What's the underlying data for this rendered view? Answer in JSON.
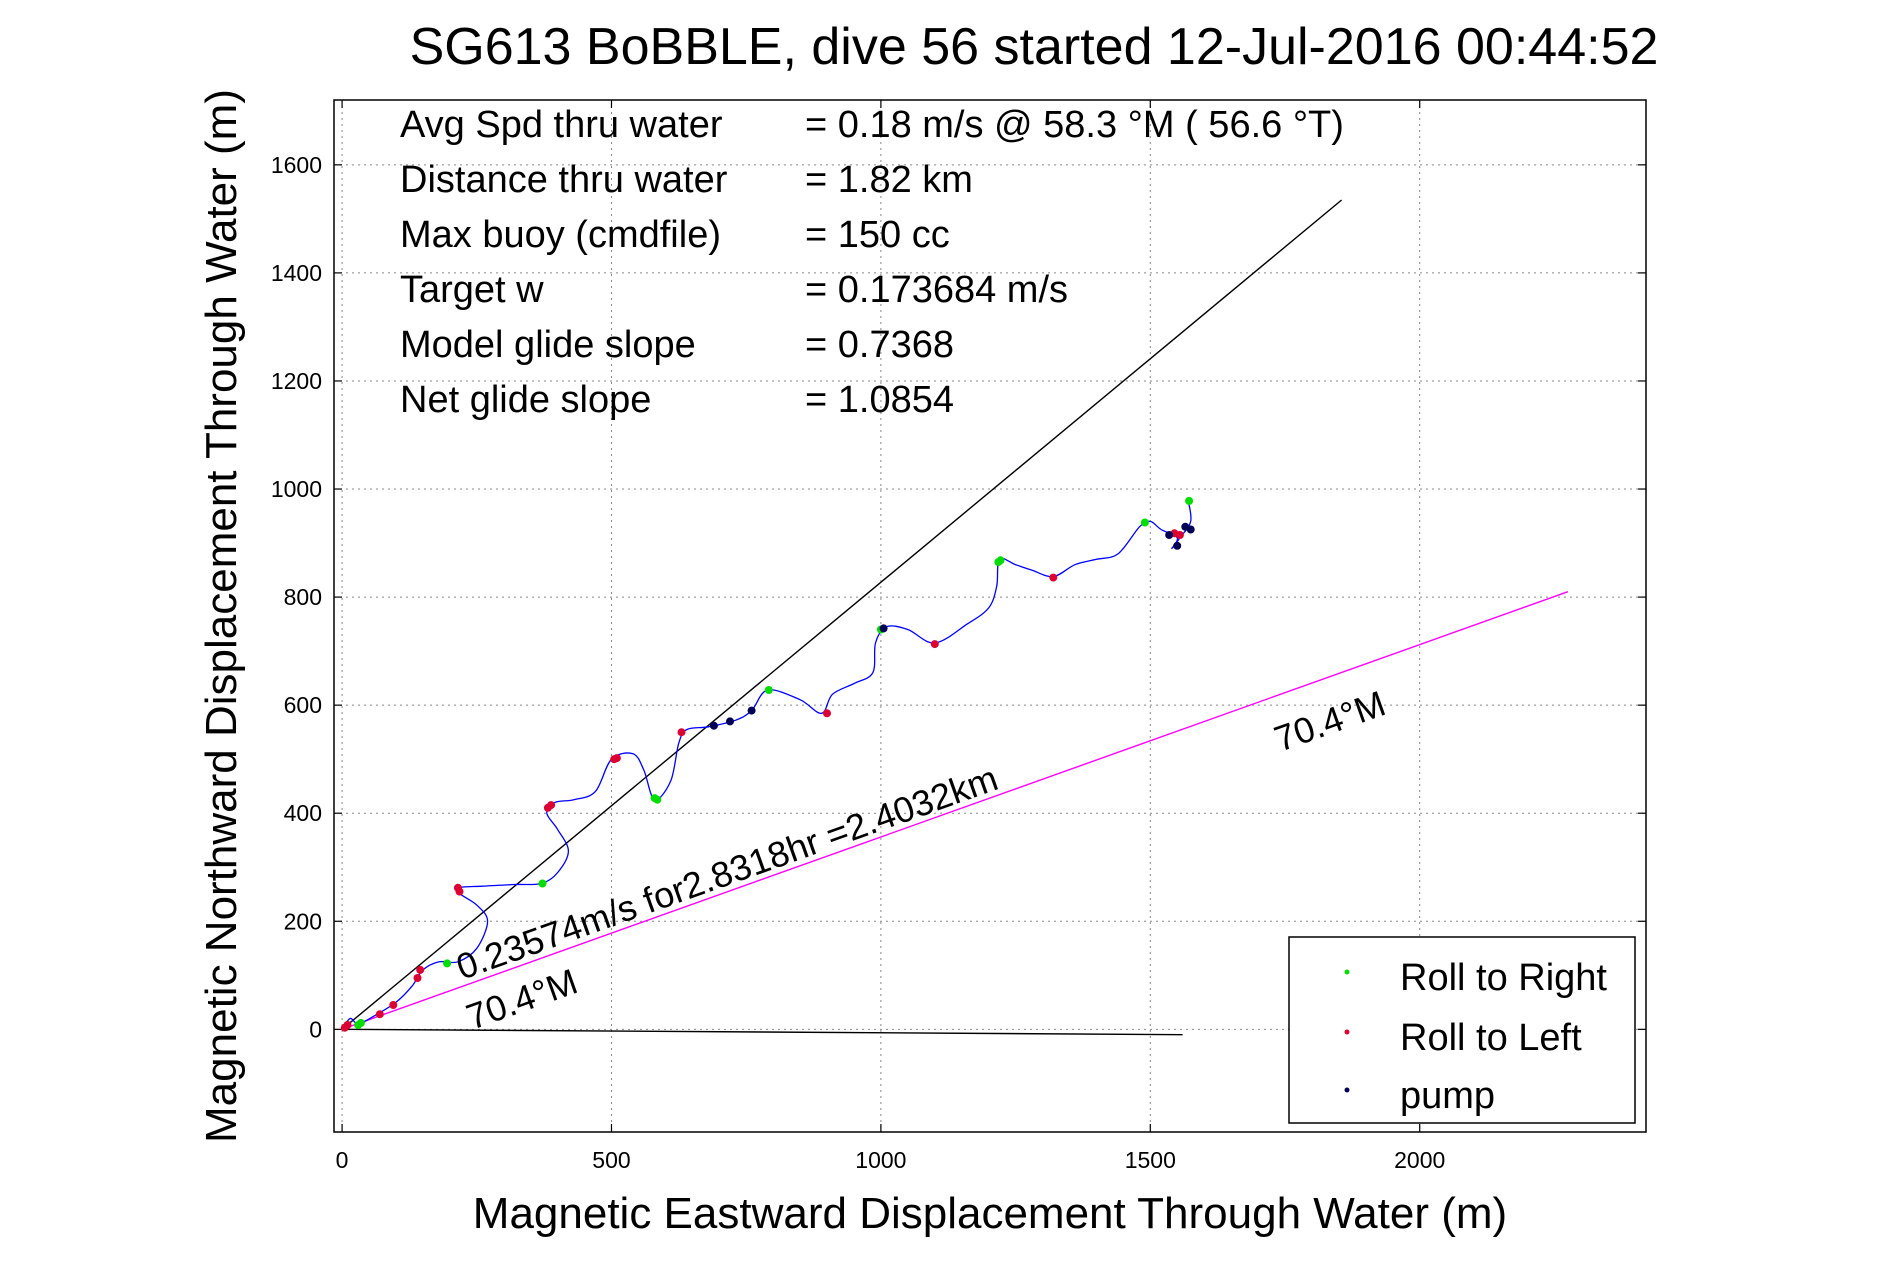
{
  "chart_data": {
    "type": "scatter",
    "title": "SG613 BoBBLE, dive 56 started 12-Jul-2016 00:44:52",
    "xlabel": "Magnetic Eastward Displacement Through Water (m)",
    "ylabel": "Magnetic Northward Displacement Through Water (m)",
    "xlim": [
      -15,
      2420
    ],
    "ylim": [
      -190,
      1720
    ],
    "xticks": [
      0,
      500,
      1000,
      1500,
      2000
    ],
    "yticks": [
      0,
      200,
      400,
      600,
      800,
      1000,
      1200,
      1400,
      1600
    ],
    "grid": true,
    "legend_position": "bottom-right",
    "info_lines": [
      {
        "label": "Avg Spd thru water",
        "value": "=  0.18 m/s @  58.3 °M ( 56.6 °T)"
      },
      {
        "label": "Distance thru water",
        "value": "=  1.82 km"
      },
      {
        "label": "Max buoy (cmdfile)",
        "value": "= 150 cc"
      },
      {
        "label": "Target w",
        "value": "= 0.173684 m/s"
      },
      {
        "label": "Model glide slope",
        "value": "= 0.7368"
      },
      {
        "label": "Net glide slope",
        "value": "= 1.0854"
      }
    ],
    "annotations": {
      "current_label": "0.23574m/s for2.8318hr =2.4032km",
      "heading_label_near": "70.4°M",
      "heading_label_far": "70.4°M"
    },
    "reference_lines": [
      {
        "color": "#000000",
        "points": [
          [
            0,
            0
          ],
          [
            1855,
            1535
          ]
        ]
      },
      {
        "color": "#ff00ff",
        "points": [
          [
            0,
            0
          ],
          [
            2275,
            810
          ]
        ]
      },
      {
        "color": "#000000",
        "points": [
          [
            0,
            0
          ],
          [
            1560,
            -10
          ]
        ]
      }
    ],
    "track": {
      "color": "#0000ff",
      "points": [
        [
          0,
          0
        ],
        [
          15,
          20
        ],
        [
          30,
          10
        ],
        [
          60,
          25
        ],
        [
          100,
          50
        ],
        [
          130,
          80
        ],
        [
          150,
          110
        ],
        [
          180,
          125
        ],
        [
          215,
          125
        ],
        [
          250,
          150
        ],
        [
          270,
          200
        ],
        [
          250,
          230
        ],
        [
          220,
          250
        ],
        [
          215,
          262
        ],
        [
          260,
          265
        ],
        [
          320,
          268
        ],
        [
          370,
          270
        ],
        [
          400,
          290
        ],
        [
          420,
          330
        ],
        [
          400,
          370
        ],
        [
          380,
          400
        ],
        [
          395,
          420
        ],
        [
          430,
          425
        ],
        [
          470,
          440
        ],
        [
          500,
          500
        ],
        [
          540,
          510
        ],
        [
          560,
          480
        ],
        [
          580,
          425
        ],
        [
          610,
          460
        ],
        [
          625,
          530
        ],
        [
          640,
          555
        ],
        [
          680,
          560
        ],
        [
          730,
          572
        ],
        [
          760,
          590
        ],
        [
          790,
          628
        ],
        [
          850,
          610
        ],
        [
          890,
          585
        ],
        [
          910,
          620
        ],
        [
          950,
          640
        ],
        [
          985,
          660
        ],
        [
          990,
          715
        ],
        [
          1010,
          745
        ],
        [
          1050,
          740
        ],
        [
          1100,
          715
        ],
        [
          1160,
          750
        ],
        [
          1200,
          780
        ],
        [
          1215,
          820
        ],
        [
          1220,
          870
        ],
        [
          1250,
          860
        ],
        [
          1280,
          850
        ],
        [
          1320,
          838
        ],
        [
          1360,
          860
        ],
        [
          1400,
          870
        ],
        [
          1440,
          880
        ],
        [
          1480,
          930
        ],
        [
          1500,
          940
        ],
        [
          1520,
          925
        ],
        [
          1550,
          910
        ],
        [
          1540,
          890
        ],
        [
          1555,
          910
        ],
        [
          1575,
          940
        ],
        [
          1570,
          980
        ]
      ]
    },
    "series": [
      {
        "name": "Roll to Right",
        "color": "#00dd00",
        "points": [
          [
            30,
            8
          ],
          [
            35,
            12
          ],
          [
            195,
            122
          ],
          [
            372,
            270
          ],
          [
            580,
            428
          ],
          [
            585,
            425
          ],
          [
            792,
            628
          ],
          [
            1000,
            740
          ],
          [
            1218,
            865
          ],
          [
            1222,
            868
          ],
          [
            1490,
            938
          ],
          [
            1572,
            978
          ]
        ]
      },
      {
        "name": "Roll to Left",
        "color": "#dd0033",
        "points": [
          [
            5,
            3
          ],
          [
            10,
            8
          ],
          [
            70,
            28
          ],
          [
            95,
            45
          ],
          [
            140,
            95
          ],
          [
            145,
            110
          ],
          [
            215,
            262
          ],
          [
            218,
            255
          ],
          [
            382,
            410
          ],
          [
            388,
            415
          ],
          [
            505,
            500
          ],
          [
            510,
            502
          ],
          [
            630,
            550
          ],
          [
            900,
            585
          ],
          [
            1100,
            713
          ],
          [
            1320,
            836
          ],
          [
            1545,
            918
          ],
          [
            1555,
            915
          ]
        ]
      },
      {
        "name": "pump",
        "color": "#000055",
        "points": [
          [
            690,
            562
          ],
          [
            720,
            570
          ],
          [
            760,
            590
          ],
          [
            1005,
            742
          ],
          [
            1535,
            915
          ],
          [
            1550,
            895
          ],
          [
            1565,
            930
          ],
          [
            1575,
            925
          ]
        ]
      }
    ]
  }
}
